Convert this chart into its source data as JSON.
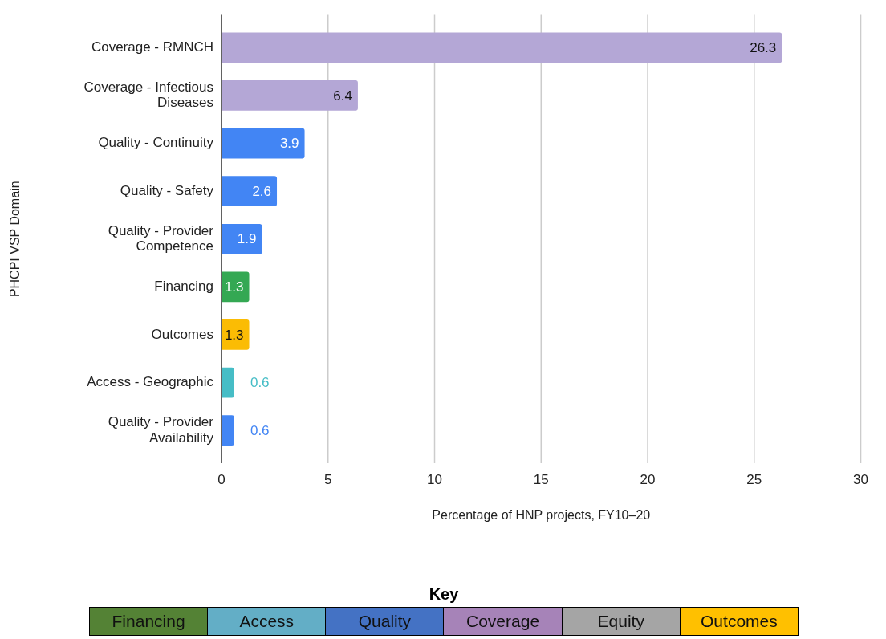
{
  "chart_data": [
    {
      "type": "bar",
      "orientation": "horizontal",
      "xlabel": "Percentage of HNP projects, FY10–20",
      "ylabel": "PHCPI VSP Domain",
      "categories": [
        "Coverage - RMNCH",
        "Coverage - Infectious Diseases",
        "Quality - Continuity",
        "Quality - Safety",
        "Quality - Provider Competence",
        "Financing",
        "Outcomes",
        "Access - Geographic",
        "Quality - Provider Availability"
      ],
      "values": [
        26.3,
        6.4,
        3.9,
        2.6,
        1.9,
        1.3,
        1.3,
        0.6,
        0.6
      ],
      "colors": [
        "#b4a7d6",
        "#b4a7d6",
        "#4285f4",
        "#4285f4",
        "#4285f4",
        "#34a853",
        "#fbbc04",
        "#46bdc6",
        "#4285f4"
      ],
      "xlim": [
        0,
        30
      ],
      "xticks": [
        0,
        5,
        10,
        15,
        20,
        25,
        30
      ],
      "grid": "x",
      "data_labels": true
    },
    {
      "type": "other",
      "title": "Key",
      "categories": [
        "Financing",
        "Access",
        "Quality",
        "Coverage",
        "Equity",
        "Outcomes"
      ],
      "colors": [
        "#548235",
        "#63aec6",
        "#4472c4",
        "#a683b8",
        "#a5a5a5",
        "#ffc000"
      ]
    }
  ]
}
